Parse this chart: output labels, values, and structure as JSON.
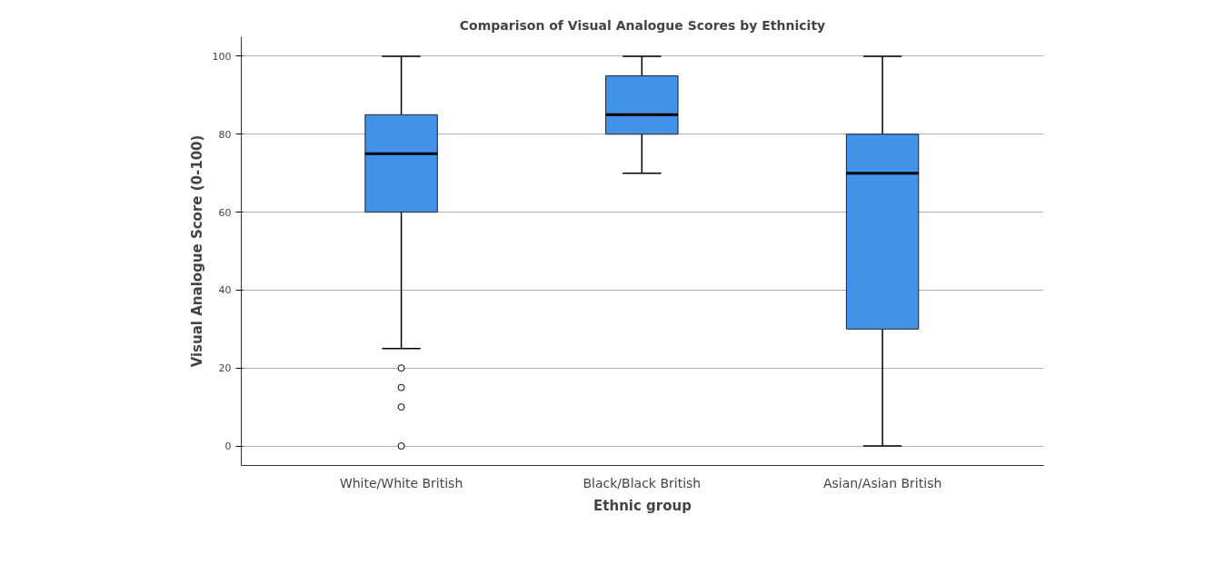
{
  "chart_data": {
    "type": "box",
    "title": "Comparison of Visual Analogue Scores by Ethnicity",
    "xlabel": "Ethnic group",
    "ylabel": "Visual Analogue Score (0-100)",
    "categories": [
      "White/White British",
      "Black/Black British",
      "Asian/Asian British"
    ],
    "color": "#4192e8",
    "boxes": [
      {
        "low": 25,
        "q1": 60,
        "median": 75,
        "q3": 85,
        "high": 100,
        "outliers": [
          0,
          10,
          15,
          20
        ]
      },
      {
        "low": 70,
        "q1": 80,
        "median": 85,
        "q3": 95,
        "high": 100
      },
      {
        "low": 0,
        "q1": 30,
        "median": 70,
        "q3": 80,
        "high": 100
      }
    ],
    "ylim": [
      -5,
      105
    ],
    "yticks": [
      0,
      20,
      40,
      60,
      80,
      100
    ],
    "grid": "y"
  }
}
